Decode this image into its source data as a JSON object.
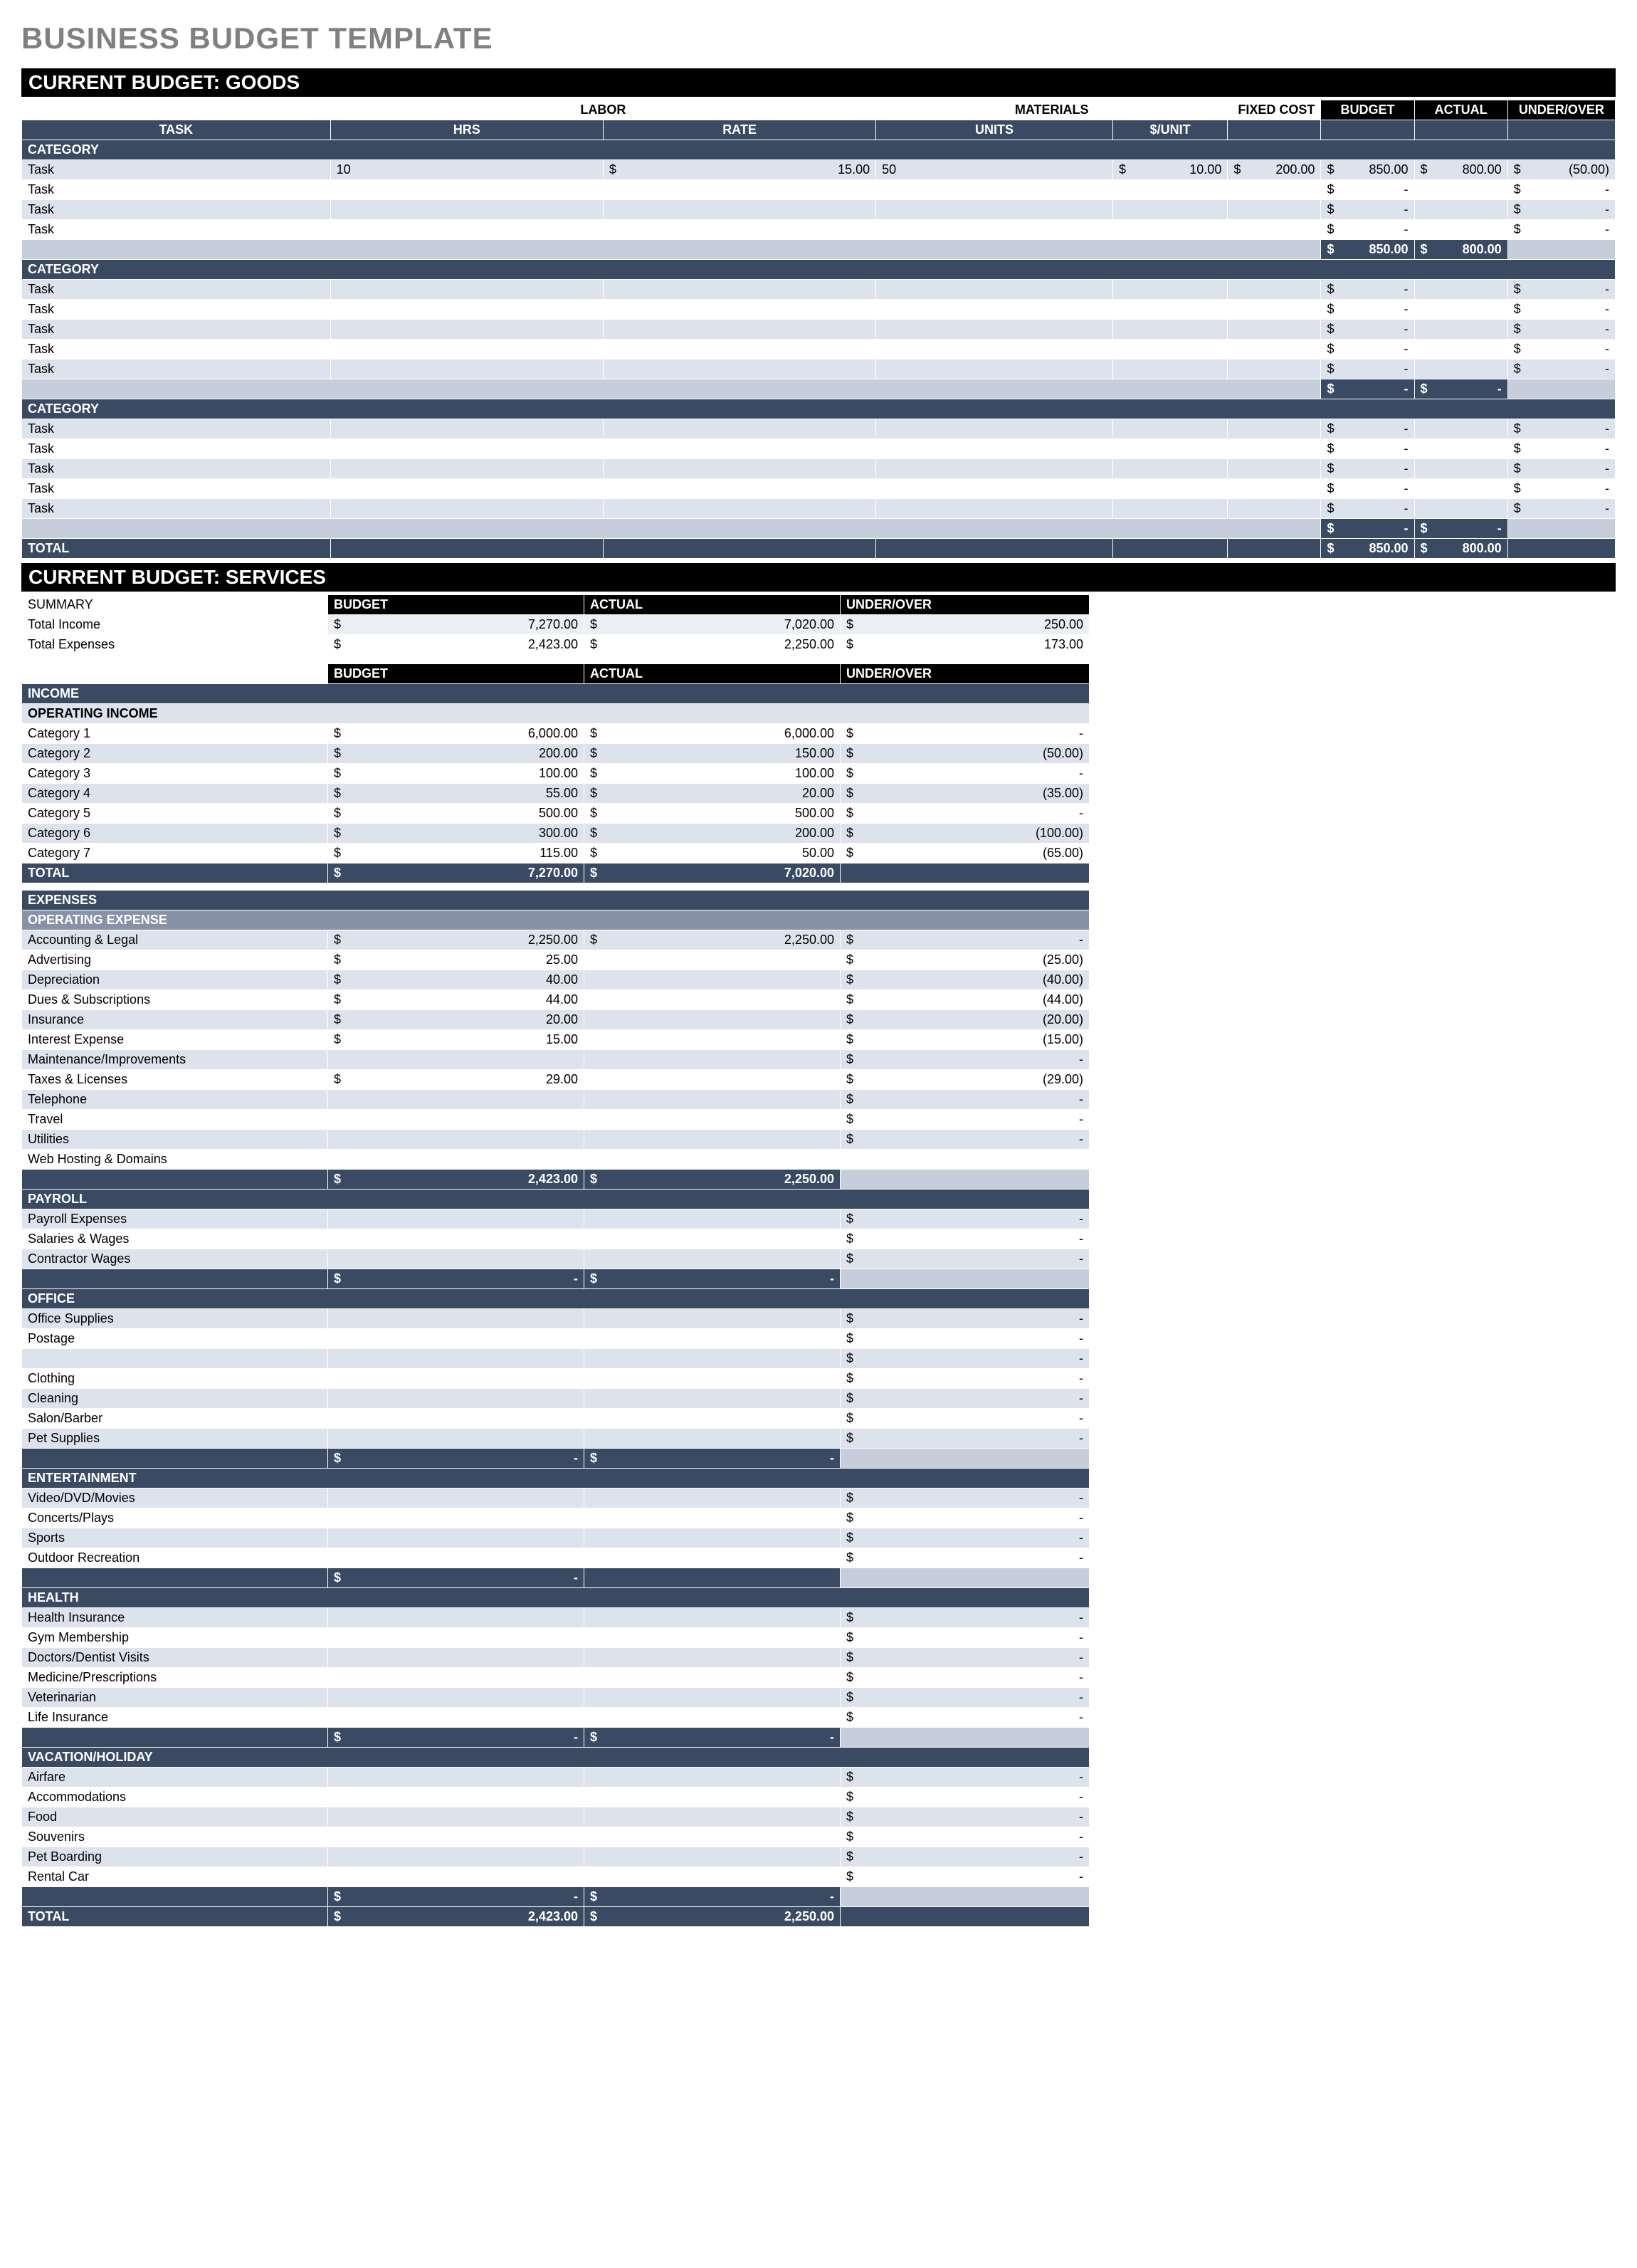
{
  "title": "BUSINESS BUDGET TEMPLATE",
  "goods": {
    "heading": "CURRENT BUDGET: GOODS",
    "superhdr": {
      "labor": "LABOR",
      "materials": "MATERIALS",
      "fixed": "FIXED COST",
      "budget": "BUDGET",
      "actual": "ACTUAL",
      "uo": "UNDER/OVER"
    },
    "hdr": {
      "task": "TASK",
      "hrs": "HRS",
      "rate": "RATE",
      "units": "UNITS",
      "perunit": "$/UNIT"
    },
    "cat_label": "CATEGORY",
    "task_label": "Task",
    "categories": [
      {
        "rows": [
          {
            "hrs": "10",
            "rate": "15.00",
            "units": "50",
            "perunit": "10.00",
            "fixed": "200.00",
            "budget": "850.00",
            "actual": "800.00",
            "uo": "(50.00)"
          },
          {
            "budget": "-",
            "uo": "-"
          },
          {
            "budget": "-",
            "uo": "-"
          },
          {
            "budget": "-",
            "uo": "-"
          }
        ],
        "subtotal": {
          "budget": "850.00",
          "actual": "800.00"
        }
      },
      {
        "rows": [
          {
            "budget": "-",
            "uo": "-"
          },
          {
            "budget": "-",
            "uo": "-"
          },
          {
            "budget": "-",
            "uo": "-"
          },
          {
            "budget": "-",
            "uo": "-"
          },
          {
            "budget": "-",
            "uo": "-"
          }
        ],
        "subtotal": {
          "budget": "-",
          "actual": "-"
        }
      },
      {
        "rows": [
          {
            "budget": "-",
            "uo": "-"
          },
          {
            "budget": "-",
            "uo": "-"
          },
          {
            "budget": "-",
            "uo": "-"
          },
          {
            "budget": "-",
            "uo": "-"
          },
          {
            "budget": "-",
            "uo": "-"
          }
        ],
        "subtotal": {
          "budget": "-",
          "actual": "-"
        }
      }
    ],
    "total_label": "TOTAL",
    "total": {
      "budget": "850.00",
      "actual": "800.00"
    }
  },
  "services": {
    "heading": "CURRENT BUDGET: SERVICES",
    "summary_label": "SUMMARY",
    "hdr": {
      "budget": "BUDGET",
      "actual": "ACTUAL",
      "uo": "UNDER/OVER"
    },
    "summary": [
      {
        "label": "Total Income",
        "budget": "7,270.00",
        "actual": "7,020.00",
        "uo": "250.00"
      },
      {
        "label": "Total Expenses",
        "budget": "2,423.00",
        "actual": "2,250.00",
        "uo": "173.00"
      }
    ],
    "income_label": "INCOME",
    "opincome_label": "OPERATING INCOME",
    "income": [
      {
        "label": "Category 1",
        "budget": "6,000.00",
        "actual": "6,000.00",
        "uo": "-"
      },
      {
        "label": "Category 2",
        "budget": "200.00",
        "actual": "150.00",
        "uo": "(50.00)"
      },
      {
        "label": "Category 3",
        "budget": "100.00",
        "actual": "100.00",
        "uo": "-"
      },
      {
        "label": "Category 4",
        "budget": "55.00",
        "actual": "20.00",
        "uo": "(35.00)"
      },
      {
        "label": "Category 5",
        "budget": "500.00",
        "actual": "500.00",
        "uo": "-"
      },
      {
        "label": "Category 6",
        "budget": "300.00",
        "actual": "200.00",
        "uo": "(100.00)"
      },
      {
        "label": "Category 7",
        "budget": "115.00",
        "actual": "50.00",
        "uo": "(65.00)"
      }
    ],
    "income_total": {
      "label": "TOTAL",
      "budget": "7,270.00",
      "actual": "7,020.00"
    },
    "expenses_label": "EXPENSES",
    "groups": [
      {
        "name": "OPERATING EXPENSE",
        "rows": [
          {
            "label": "Accounting & Legal",
            "budget": "2,250.00",
            "actual": "2,250.00",
            "uo": "-"
          },
          {
            "label": "Advertising",
            "budget": "25.00",
            "uo": "(25.00)"
          },
          {
            "label": "Depreciation",
            "budget": "40.00",
            "uo": "(40.00)"
          },
          {
            "label": "Dues & Subscriptions",
            "budget": "44.00",
            "uo": "(44.00)"
          },
          {
            "label": "Insurance",
            "budget": "20.00",
            "uo": "(20.00)"
          },
          {
            "label": "Interest Expense",
            "budget": "15.00",
            "uo": "(15.00)"
          },
          {
            "label": "Maintenance/Improvements",
            "uo": "-"
          },
          {
            "label": "Taxes & Licenses",
            "budget": "29.00",
            "uo": "(29.00)"
          },
          {
            "label": "Telephone",
            "uo": "-"
          },
          {
            "label": "Travel",
            "uo": "-"
          },
          {
            "label": "Utilities",
            "uo": "-"
          },
          {
            "label": "Web Hosting & Domains"
          }
        ],
        "subtotal": {
          "budget": "2,423.00",
          "actual": "2,250.00"
        }
      },
      {
        "name": "PAYROLL",
        "rows": [
          {
            "label": "Payroll Expenses",
            "uo": "-"
          },
          {
            "label": "Salaries & Wages",
            "uo": "-"
          },
          {
            "label": "Contractor Wages",
            "uo": "-"
          }
        ],
        "subtotal": {
          "budget": "-",
          "actual": "-"
        }
      },
      {
        "name": "OFFICE",
        "rows": [
          {
            "label": "Office Supplies",
            "uo": "-"
          },
          {
            "label": "Postage",
            "uo": "-"
          },
          {
            "label": "",
            "uo": "-"
          },
          {
            "label": "Clothing",
            "uo": "-"
          },
          {
            "label": "Cleaning",
            "uo": "-"
          },
          {
            "label": "Salon/Barber",
            "uo": "-"
          },
          {
            "label": "Pet Supplies",
            "uo": "-"
          }
        ],
        "subtotal": {
          "budget": "-",
          "actual": "-"
        }
      },
      {
        "name": "ENTERTAINMENT",
        "rows": [
          {
            "label": "Video/DVD/Movies",
            "uo": "-"
          },
          {
            "label": "Concerts/Plays",
            "uo": "-"
          },
          {
            "label": "Sports",
            "uo": "-"
          },
          {
            "label": "Outdoor Recreation",
            "uo": "-"
          }
        ],
        "subtotal": {
          "budget": "-"
        }
      },
      {
        "name": "HEALTH",
        "rows": [
          {
            "label": "Health Insurance",
            "uo": "-"
          },
          {
            "label": "Gym Membership",
            "uo": "-"
          },
          {
            "label": "Doctors/Dentist Visits",
            "uo": "-"
          },
          {
            "label": "Medicine/Prescriptions",
            "uo": "-"
          },
          {
            "label": "Veterinarian",
            "uo": "-"
          },
          {
            "label": "Life Insurance",
            "uo": "-"
          }
        ],
        "subtotal": {
          "budget": "-",
          "actual": "-"
        }
      },
      {
        "name": "VACATION/HOLIDAY",
        "rows": [
          {
            "label": "Airfare",
            "uo": "-"
          },
          {
            "label": "Accommodations",
            "uo": "-"
          },
          {
            "label": "Food",
            "uo": "-"
          },
          {
            "label": "Souvenirs",
            "uo": "-"
          },
          {
            "label": "Pet Boarding",
            "uo": "-"
          },
          {
            "label": "Rental Car",
            "uo": "-"
          }
        ],
        "subtotal": {
          "budget": "-",
          "actual": "-"
        }
      }
    ],
    "total": {
      "label": "TOTAL",
      "budget": "2,423.00",
      "actual": "2,250.00"
    }
  }
}
